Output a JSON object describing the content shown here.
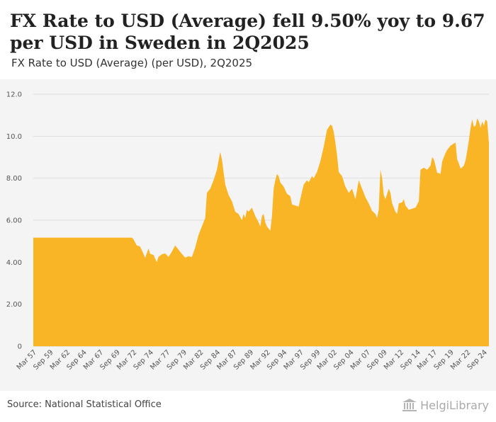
{
  "header": {
    "title": "FX Rate to USD (Average) fell 9.50% yoy to 9.67 per USD in Sweden in 2Q2025",
    "subtitle": "FX Rate to USD (Average) (per USD), 2Q2025"
  },
  "footer": {
    "source": "Source: National Statistical Office",
    "brand": "HelgiLibrary"
  },
  "colors": {
    "area": "#f9b526",
    "grid": "#dddddd",
    "plot_bg": "#f4f4f4"
  },
  "icons": {
    "brand": "building-columns-icon"
  },
  "chart_data": {
    "type": "area",
    "title": "FX Rate to USD (Average) (per USD), 2Q2025",
    "series": [
      {
        "name": "FX Rate to USD (Average)",
        "unit": "per USD"
      }
    ],
    "x_start": "1Q1957",
    "x_end": "2Q2025",
    "ylim": [
      0,
      12
    ],
    "yticks": [
      {
        "value": 0,
        "label": "0"
      },
      {
        "value": 2,
        "label": "2.00"
      },
      {
        "value": 4,
        "label": "4.00"
      },
      {
        "value": 6,
        "label": "6.00"
      },
      {
        "value": 8,
        "label": "8.00"
      },
      {
        "value": 10,
        "label": "10.0"
      },
      {
        "value": 12,
        "label": "12.0"
      }
    ],
    "xticks": [
      {
        "t": 1957.0,
        "label": "Mar 57"
      },
      {
        "t": 1959.5,
        "label": "Sep 59"
      },
      {
        "t": 1962.0,
        "label": "Mar 62"
      },
      {
        "t": 1964.5,
        "label": "Sep 64"
      },
      {
        "t": 1967.0,
        "label": "Mar 67"
      },
      {
        "t": 1969.5,
        "label": "Sep 69"
      },
      {
        "t": 1972.0,
        "label": "Mar 72"
      },
      {
        "t": 1974.5,
        "label": "Sep 74"
      },
      {
        "t": 1977.0,
        "label": "Mar 77"
      },
      {
        "t": 1979.5,
        "label": "Sep 79"
      },
      {
        "t": 1982.0,
        "label": "Mar 82"
      },
      {
        "t": 1984.5,
        "label": "Sep 84"
      },
      {
        "t": 1987.0,
        "label": "Mar 87"
      },
      {
        "t": 1989.5,
        "label": "Sep 89"
      },
      {
        "t": 1992.0,
        "label": "Mar 92"
      },
      {
        "t": 1994.5,
        "label": "Sep 94"
      },
      {
        "t": 1997.0,
        "label": "Mar 97"
      },
      {
        "t": 1999.5,
        "label": "Sep 99"
      },
      {
        "t": 2002.0,
        "label": "Mar 02"
      },
      {
        "t": 2004.5,
        "label": "Sep 04"
      },
      {
        "t": 2007.0,
        "label": "Mar 07"
      },
      {
        "t": 2009.5,
        "label": "Sep 09"
      },
      {
        "t": 2012.0,
        "label": "Mar 12"
      },
      {
        "t": 2014.5,
        "label": "Sep 14"
      },
      {
        "t": 2017.0,
        "label": "Mar 17"
      },
      {
        "t": 2019.5,
        "label": "Sep 19"
      },
      {
        "t": 2022.0,
        "label": "Mar 22"
      },
      {
        "t": 2024.5,
        "label": "Sep 24"
      }
    ],
    "points": [
      [
        1957.0,
        5.17
      ],
      [
        1971.75,
        5.17
      ],
      [
        1972.0,
        5.1
      ],
      [
        1972.5,
        4.8
      ],
      [
        1973.0,
        4.75
      ],
      [
        1973.5,
        4.4
      ],
      [
        1973.75,
        4.2
      ],
      [
        1974.25,
        4.65
      ],
      [
        1974.5,
        4.4
      ],
      [
        1975.0,
        4.35
      ],
      [
        1975.5,
        4.0
      ],
      [
        1975.75,
        4.25
      ],
      [
        1976.25,
        4.38
      ],
      [
        1976.75,
        4.42
      ],
      [
        1977.25,
        4.25
      ],
      [
        1977.75,
        4.5
      ],
      [
        1978.25,
        4.8
      ],
      [
        1978.75,
        4.6
      ],
      [
        1979.25,
        4.4
      ],
      [
        1979.75,
        4.22
      ],
      [
        1980.25,
        4.28
      ],
      [
        1980.75,
        4.25
      ],
      [
        1981.25,
        4.7
      ],
      [
        1981.75,
        5.3
      ],
      [
        1982.25,
        5.7
      ],
      [
        1982.75,
        6.1
      ],
      [
        1983.0,
        7.3
      ],
      [
        1983.5,
        7.5
      ],
      [
        1984.0,
        7.9
      ],
      [
        1984.5,
        8.4
      ],
      [
        1985.0,
        9.25
      ],
      [
        1985.25,
        8.9
      ],
      [
        1985.5,
        8.3
      ],
      [
        1985.75,
        7.7
      ],
      [
        1986.25,
        7.2
      ],
      [
        1986.75,
        6.9
      ],
      [
        1987.25,
        6.4
      ],
      [
        1987.75,
        6.3
      ],
      [
        1988.25,
        6.0
      ],
      [
        1988.5,
        6.3
      ],
      [
        1988.75,
        6.1
      ],
      [
        1989.0,
        6.5
      ],
      [
        1989.25,
        6.4
      ],
      [
        1989.75,
        6.6
      ],
      [
        1990.25,
        6.2
      ],
      [
        1990.75,
        5.9
      ],
      [
        1991.0,
        5.7
      ],
      [
        1991.25,
        6.2
      ],
      [
        1991.5,
        6.3
      ],
      [
        1991.75,
        5.9
      ],
      [
        1992.0,
        5.7
      ],
      [
        1992.25,
        5.6
      ],
      [
        1992.5,
        5.5
      ],
      [
        1992.75,
        6.2
      ],
      [
        1993.0,
        7.5
      ],
      [
        1993.25,
        7.9
      ],
      [
        1993.5,
        8.2
      ],
      [
        1993.75,
        8.1
      ],
      [
        1994.0,
        7.8
      ],
      [
        1994.5,
        7.6
      ],
      [
        1995.0,
        7.25
      ],
      [
        1995.5,
        7.15
      ],
      [
        1995.75,
        6.75
      ],
      [
        1996.25,
        6.7
      ],
      [
        1996.75,
        6.65
      ],
      [
        1997.0,
        7.0
      ],
      [
        1997.5,
        7.7
      ],
      [
        1998.0,
        7.9
      ],
      [
        1998.25,
        7.8
      ],
      [
        1998.5,
        7.95
      ],
      [
        1998.75,
        8.1
      ],
      [
        1999.0,
        8.0
      ],
      [
        1999.5,
        8.3
      ],
      [
        2000.0,
        8.8
      ],
      [
        2000.5,
        9.5
      ],
      [
        2001.0,
        10.3
      ],
      [
        2001.5,
        10.55
      ],
      [
        2001.75,
        10.5
      ],
      [
        2002.0,
        10.2
      ],
      [
        2002.25,
        9.7
      ],
      [
        2002.5,
        9.1
      ],
      [
        2002.75,
        8.3
      ],
      [
        2003.25,
        8.1
      ],
      [
        2003.75,
        7.6
      ],
      [
        2004.25,
        7.3
      ],
      [
        2004.75,
        7.5
      ],
      [
        2005.25,
        7.0
      ],
      [
        2005.75,
        7.9
      ],
      [
        2006.25,
        7.5
      ],
      [
        2006.75,
        7.1
      ],
      [
        2007.25,
        6.8
      ],
      [
        2007.75,
        6.45
      ],
      [
        2008.25,
        6.3
      ],
      [
        2008.5,
        6.1
      ],
      [
        2008.75,
        6.5
      ],
      [
        2009.0,
        8.4
      ],
      [
        2009.25,
        8.0
      ],
      [
        2009.5,
        7.2
      ],
      [
        2009.75,
        7.0
      ],
      [
        2010.25,
        7.5
      ],
      [
        2010.5,
        7.3
      ],
      [
        2010.75,
        6.8
      ],
      [
        2011.25,
        6.4
      ],
      [
        2011.5,
        6.3
      ],
      [
        2011.75,
        6.8
      ],
      [
        2012.25,
        6.85
      ],
      [
        2012.5,
        7.0
      ],
      [
        2012.75,
        6.7
      ],
      [
        2013.25,
        6.5
      ],
      [
        2013.75,
        6.55
      ],
      [
        2014.25,
        6.6
      ],
      [
        2014.75,
        6.9
      ],
      [
        2015.0,
        8.4
      ],
      [
        2015.5,
        8.5
      ],
      [
        2016.0,
        8.4
      ],
      [
        2016.5,
        8.6
      ],
      [
        2016.75,
        9.0
      ],
      [
        2017.0,
        8.9
      ],
      [
        2017.25,
        8.6
      ],
      [
        2017.5,
        8.25
      ],
      [
        2017.75,
        8.25
      ],
      [
        2018.0,
        8.2
      ],
      [
        2018.25,
        8.8
      ],
      [
        2018.5,
        9.0
      ],
      [
        2018.75,
        9.2
      ],
      [
        2019.0,
        9.35
      ],
      [
        2019.5,
        9.55
      ],
      [
        2020.0,
        9.65
      ],
      [
        2020.25,
        9.7
      ],
      [
        2020.5,
        8.9
      ],
      [
        2020.75,
        8.7
      ],
      [
        2021.0,
        8.45
      ],
      [
        2021.5,
        8.6
      ],
      [
        2021.75,
        8.85
      ],
      [
        2022.0,
        9.3
      ],
      [
        2022.25,
        9.8
      ],
      [
        2022.5,
        10.4
      ],
      [
        2022.75,
        10.8
      ],
      [
        2023.0,
        10.45
      ],
      [
        2023.25,
        10.5
      ],
      [
        2023.5,
        10.85
      ],
      [
        2023.75,
        10.7
      ],
      [
        2024.0,
        10.4
      ],
      [
        2024.25,
        10.7
      ],
      [
        2024.5,
        10.5
      ],
      [
        2024.75,
        10.8
      ],
      [
        2025.0,
        10.7
      ],
      [
        2025.25,
        9.67
      ]
    ],
    "last_value": {
      "period": "2Q2025",
      "value": 9.67,
      "yoy_change_pct": -9.5
    }
  }
}
